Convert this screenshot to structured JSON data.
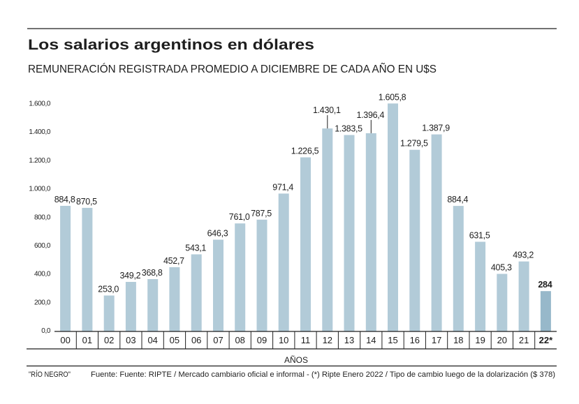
{
  "header": {
    "title": "Los salarios argentinos en dólares",
    "subtitle": "REMUNERACIÓN REGISTRADA PROMEDIO A DICIEMBRE DE CADA AÑO EN U$S"
  },
  "footer": {
    "credit": "\"RÍO NEGRO\"",
    "source": "Fuente: Fuente: RIPTE / Mercado cambiario oficial e informal - (*) Ripte Enero 2022 / Tipo de cambio luego de la dolarización ($ 378)"
  },
  "colors": {
    "bar": "#b2cbd8",
    "highlight_bar": "#97b8ca",
    "text": "#1e1e1e"
  },
  "chart_data": {
    "type": "bar",
    "title": "Los salarios argentinos en dólares",
    "subtitle": "REMUNERACIÓN REGISTRADA PROMEDIO A DICIEMBRE DE CADA AÑO EN U$S",
    "xlabel": "AÑOS",
    "ylabel": "",
    "categories": [
      "00",
      "01",
      "02",
      "03",
      "04",
      "05",
      "06",
      "07",
      "08",
      "09",
      "10",
      "11",
      "12",
      "13",
      "14",
      "15",
      "16",
      "17",
      "18",
      "19",
      "20",
      "21",
      "22*"
    ],
    "values": [
      884.8,
      870.5,
      253.0,
      349.2,
      368.8,
      452.7,
      543.1,
      646.3,
      761.0,
      787.5,
      971.4,
      1226.5,
      1430.1,
      1383.5,
      1396.4,
      1605.8,
      1279.5,
      1387.9,
      884.4,
      631.5,
      405.3,
      493.2,
      284
    ],
    "value_labels": [
      "884,8",
      "870,5",
      "253,0",
      "349,2",
      "368,8",
      "452,7",
      "543,1",
      "646,3",
      "761,0",
      "787,5",
      "971,4",
      "1.226,5",
      "1.430,1",
      "1.383,5",
      "1.396,4",
      "1.605,8",
      "1.279,5",
      "1.387,9",
      "884,4",
      "631,5",
      "405,3",
      "493,2",
      "284"
    ],
    "highlight_categories": [
      "22*"
    ],
    "leader_line_categories": [
      "12",
      "14"
    ],
    "yticks": [
      0,
      200,
      400,
      600,
      800,
      1000,
      1200,
      1400,
      1600
    ],
    "ytick_labels": [
      "0,0",
      "200,0",
      "400,0",
      "600,0",
      "800,0",
      "1.000,0",
      "1.200,0",
      "1.400,0",
      "1.600,0"
    ],
    "ylim": [
      0,
      1600
    ],
    "grid": false,
    "legend": "none"
  }
}
